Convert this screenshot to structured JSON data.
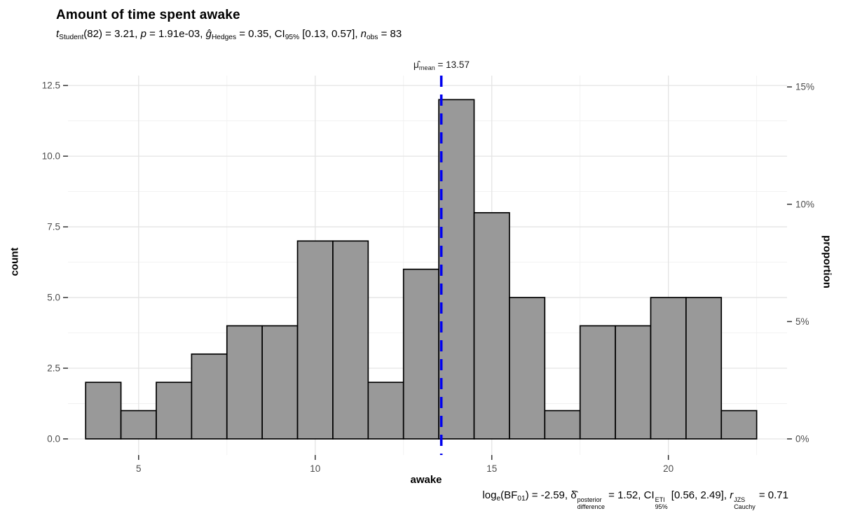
{
  "header": {
    "title": "Amount of time spent awake",
    "subtitle_parts": [
      {
        "t": "t",
        "i": true
      },
      {
        "t": "Student",
        "sub": true
      },
      {
        "t": "(82) = 3.21, "
      },
      {
        "t": "p",
        "i": true
      },
      {
        "t": " = 1.91e-03, "
      },
      {
        "t": "ĝ",
        "i": true
      },
      {
        "t": "Hedges",
        "sub": true
      },
      {
        "t": " = 0.35, CI"
      },
      {
        "t": "95%",
        "sub": true
      },
      {
        "t": " [0.13, 0.57], "
      },
      {
        "t": "n",
        "i": true
      },
      {
        "t": "obs",
        "sub": true
      },
      {
        "t": " = 83"
      }
    ]
  },
  "caption_parts": [
    {
      "t": "log"
    },
    {
      "t": "e",
      "sub": true
    },
    {
      "t": "(BF"
    },
    {
      "t": "01",
      "sub": true
    },
    {
      "t": ") = -2.59, "
    },
    {
      "t": "δ̂"
    },
    {
      "stack": {
        "sup": "posterior",
        "sub": "difference"
      }
    },
    {
      "t": " = 1.52, CI"
    },
    {
      "stack": {
        "sup": "ETI",
        "sub": "95%"
      }
    },
    {
      "t": " [0.56, 2.49], "
    },
    {
      "t": "r",
      "i": true
    },
    {
      "stack": {
        "sup": "JZS",
        "sub": "Cauchy"
      }
    },
    {
      "t": " = 0.71"
    }
  ],
  "chart_data": {
    "type": "bar",
    "subtype": "histogram",
    "title": "Amount of time spent awake",
    "xlabel": "awake",
    "ylabel_left": "count",
    "ylabel_right": "proportion",
    "n_obs": 83,
    "bins": {
      "start": 3.5,
      "width": 1,
      "counts": [
        2,
        1,
        2,
        3,
        4,
        4,
        7,
        7,
        2,
        6,
        12,
        8,
        5,
        1,
        4,
        4,
        5,
        5,
        1
      ]
    },
    "xlim": [
      3.0,
      23.36
    ],
    "ylim": [
      -0.57,
      12.85
    ],
    "x_ticks": [
      {
        "v": 5,
        "label": "5"
      },
      {
        "v": 10,
        "label": "10"
      },
      {
        "v": 15,
        "label": "15"
      },
      {
        "v": 20,
        "label": "20"
      }
    ],
    "y_ticks_left": [
      {
        "v": 0,
        "label": "0.0"
      },
      {
        "v": 2.5,
        "label": "2.5"
      },
      {
        "v": 5,
        "label": "5.0"
      },
      {
        "v": 7.5,
        "label": "7.5"
      },
      {
        "v": 10,
        "label": "10.0"
      },
      {
        "v": 12.5,
        "label": "12.5"
      }
    ],
    "y_ticks_right": [
      {
        "v": 0,
        "label": "0%"
      },
      {
        "v": 4.15,
        "label": "5%"
      },
      {
        "v": 8.3,
        "label": "10%"
      },
      {
        "v": 12.45,
        "label": "15%"
      }
    ],
    "x_minor": [
      7.5,
      12.5,
      17.5,
      22.5
    ],
    "y_minor": [
      1.25,
      3.75,
      6.25,
      8.75,
      11.25
    ],
    "grid": "on",
    "legend": "none",
    "mean_line": {
      "x": 13.57,
      "color": "#0000EE",
      "dash": "16 11",
      "width": 3.6,
      "label_parts": [
        {
          "t": "μ̂"
        },
        {
          "t": "mean",
          "sub": true
        },
        {
          "t": " = 13.57"
        }
      ]
    },
    "colors": {
      "bar_fill": "#999999",
      "bar_stroke": "#000000",
      "grid_major": "#E4E4E4",
      "grid_minor": "#F1F1F1",
      "tick": "#333333",
      "tick_label": "#4D4D4D",
      "background": "#FFFFFF"
    }
  }
}
